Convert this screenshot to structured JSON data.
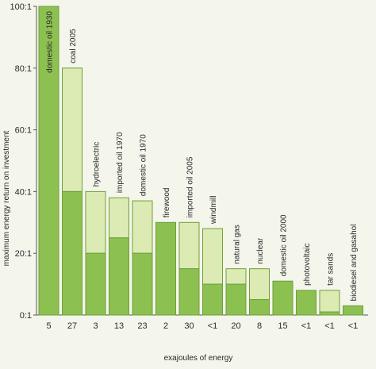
{
  "chart_data": {
    "type": "bar",
    "ylabel": "maximum energy return on investment",
    "xlabel": "exajoules of energy",
    "ylim": [
      0,
      100
    ],
    "yticks": [
      {
        "value": 0,
        "label": "0:1"
      },
      {
        "value": 20,
        "label": "20:1"
      },
      {
        "value": 40,
        "label": "40:1"
      },
      {
        "value": 60,
        "label": "60:1"
      },
      {
        "value": 80,
        "label": "80:1"
      },
      {
        "value": 100,
        "label": "100:1"
      }
    ],
    "categories": [
      "domestic oil 1930",
      "coal 2005",
      "hydroelectric",
      "imported oil 1970",
      "domestic oil 1970",
      "firewood",
      "imported oil 2005",
      "windmill",
      "natural gas",
      "nuclear",
      "domestic oil 2000",
      "photovoltaic",
      "tar sands",
      "biodiesel and gasahol"
    ],
    "x_tick_labels": [
      "5",
      "27",
      "3",
      "13",
      "23",
      "2",
      "30",
      "<1",
      "20",
      "8",
      "15",
      "<1",
      "<1",
      "<1"
    ],
    "series": [
      {
        "values": [
          100,
          40,
          20,
          25,
          20,
          30,
          15,
          10,
          10,
          5,
          11,
          8,
          1,
          3
        ]
      },
      {
        "values": [
          100,
          80,
          40,
          38,
          37,
          30,
          30,
          28,
          15,
          15,
          11,
          8,
          8,
          3
        ]
      }
    ],
    "grid": false,
    "colors": {
      "dark": "#8cc152",
      "light": "#dcebb4",
      "border": "#6f9e3a",
      "axis": "#555555"
    }
  }
}
